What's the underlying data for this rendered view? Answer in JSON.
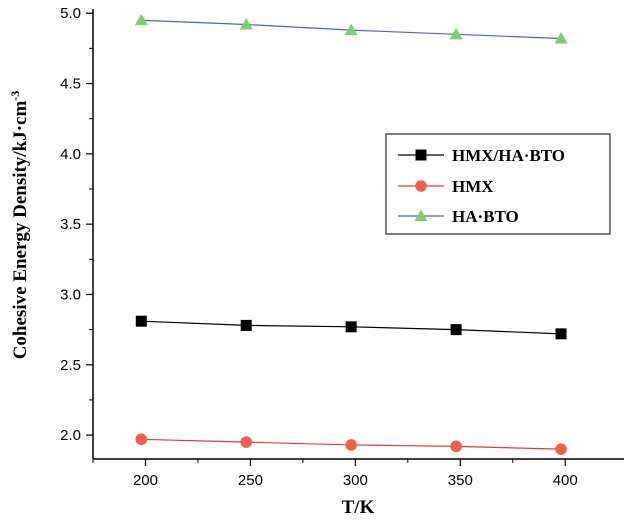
{
  "chart_data": {
    "type": "line",
    "title": "",
    "xlabel": "T/K",
    "ylabel": "Cohesive Energy Density/kJ·cm",
    "ylabel_superscript": "-3",
    "x": [
      198,
      248,
      298,
      348,
      398
    ],
    "xlim": [
      175,
      428
    ],
    "ylim": [
      1.83,
      5.03
    ],
    "xticks": [
      200,
      250,
      300,
      350,
      400
    ],
    "yticks": [
      2.0,
      2.5,
      3.0,
      3.5,
      4.0,
      4.5,
      5.0
    ],
    "xtick_labels": [
      "200",
      "250",
      "300",
      "350",
      "400"
    ],
    "ytick_labels": [
      "2.0",
      "2.5",
      "3.0",
      "3.5",
      "4.0",
      "4.5",
      "5.0"
    ],
    "grid": false,
    "legend_position": "center-right",
    "series": [
      {
        "name": "HMX/HA·BTO",
        "marker": "square",
        "color": "#000000",
        "line_color": "#000000",
        "values": [
          2.81,
          2.78,
          2.77,
          2.75,
          2.72
        ]
      },
      {
        "name": "HMX",
        "marker": "circle",
        "color": "#f0604a",
        "line_color": "#e8382b",
        "values": [
          1.97,
          1.95,
          1.93,
          1.92,
          1.9
        ]
      },
      {
        "name": "HA·BTO",
        "marker": "triangle",
        "color": "#7ccf6c",
        "line_color": "#4a66c0",
        "values": [
          4.95,
          4.92,
          4.88,
          4.85,
          4.82
        ]
      }
    ]
  }
}
